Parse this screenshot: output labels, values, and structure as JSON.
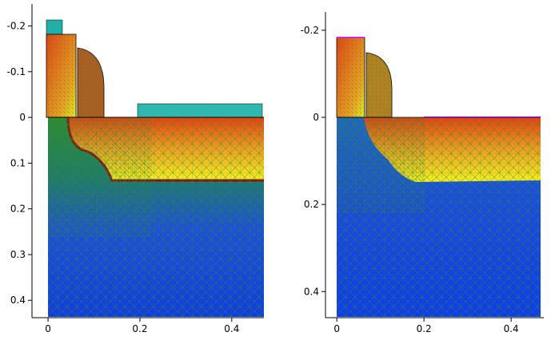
{
  "panels": [
    {
      "xlim": [
        -0.035,
        0.47
      ],
      "ylim": [
        -0.248,
        0.438
      ],
      "xticks": [
        0,
        0.2,
        0.4
      ],
      "yticks": [
        -0.2,
        -0.1,
        0,
        0.1,
        0.2,
        0.3,
        0.4
      ]
    },
    {
      "xlim": [
        -0.026,
        0.475
      ],
      "ylim": [
        -0.242,
        0.46
      ],
      "xticks": [
        0,
        0.2,
        0.4
      ],
      "yticks": [
        -0.2,
        0,
        0.2,
        0.4
      ]
    }
  ]
}
